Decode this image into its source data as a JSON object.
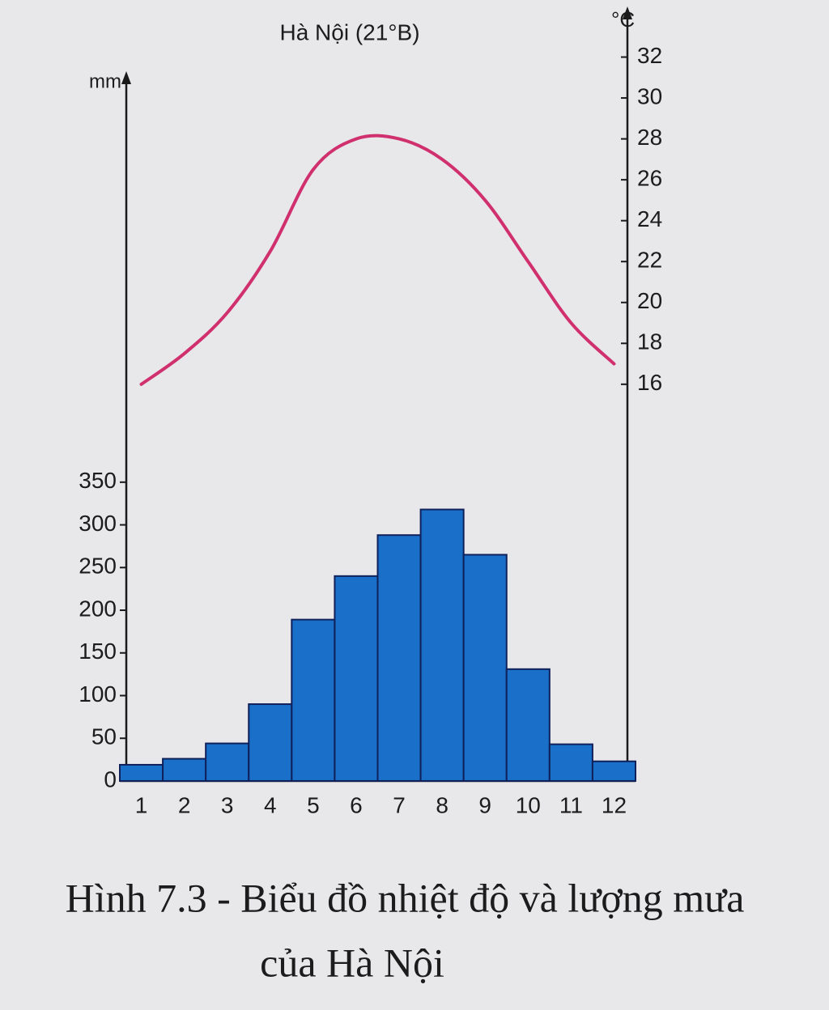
{
  "chart_data": {
    "type": "bar_line",
    "title": "Hà Nội (21°B)",
    "y_unit": "mm",
    "y2_unit": "°C",
    "categories": [
      "1",
      "2",
      "3",
      "4",
      "5",
      "6",
      "7",
      "8",
      "9",
      "10",
      "11",
      "12"
    ],
    "series": [
      {
        "name": "Lượng mưa",
        "type": "bar",
        "color": "#1a6fc9",
        "values": [
          19,
          26,
          44,
          90,
          189,
          240,
          288,
          318,
          265,
          131,
          43,
          23
        ]
      },
      {
        "name": "Nhiệt độ",
        "type": "line",
        "axis": "y2",
        "color": "#d1306e",
        "values": [
          16,
          17.5,
          19.5,
          22.5,
          26.5,
          28,
          28,
          27,
          25,
          22,
          19,
          17
        ]
      }
    ],
    "ylim": [
      0,
      820
    ],
    "yticks": [
      0,
      50,
      100,
      150,
      200,
      250,
      300,
      350
    ],
    "y2lim": [
      -3.4,
      34
    ],
    "y2ticks": [
      16,
      18,
      20,
      22,
      24,
      26,
      28,
      30,
      32
    ],
    "caption": [
      "Hình 7.3 - Biểu đồ nhiệt độ và lượng mưa",
      "của Hà Nội"
    ]
  }
}
